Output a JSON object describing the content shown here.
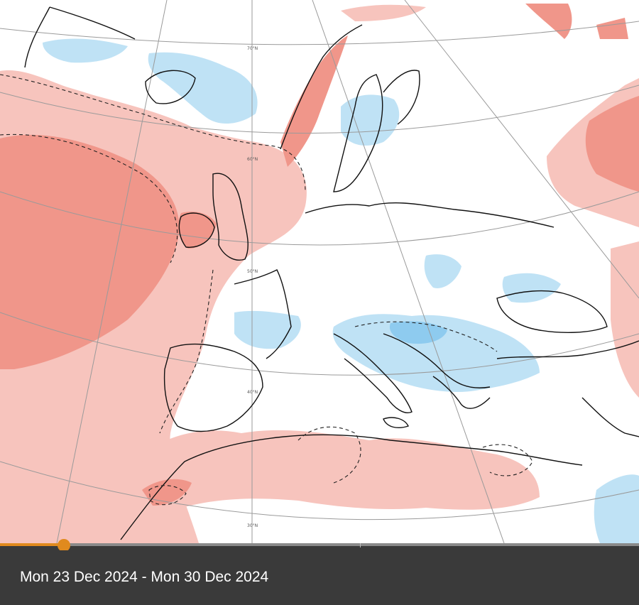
{
  "map": {
    "colors": {
      "warm_light": "#f7c4bd",
      "warm_strong": "#f0968a",
      "cold_light": "#bfe2f5",
      "cold_strong": "#8ecbef",
      "coastline": "#111111",
      "graticule": "#9a9a9a",
      "contour": "#222222"
    },
    "graticule_labels": [
      "70°N",
      "60°N",
      "50°N",
      "40°N",
      "30°N"
    ]
  },
  "timeline": {
    "progress_fraction": 0.1,
    "colors": {
      "accent": "#e08a1e",
      "track": "#8a8a8a",
      "bar": "#3a3a3a"
    }
  },
  "caption": {
    "date_range": "Mon 23 Dec 2024 - Mon 30 Dec 2024"
  }
}
